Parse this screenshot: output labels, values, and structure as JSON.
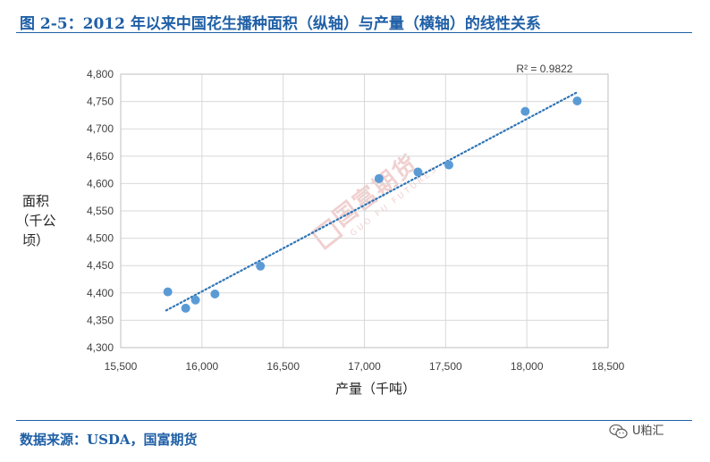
{
  "figure": {
    "title": "图 2-5：2012 年以来中国花生播种面积（纵轴）与产量（横轴）的线性关系",
    "source": "数据来源：USDA，国富期货",
    "badge": "U粕汇",
    "watermark": {
      "main": "国富期货",
      "sub": "GUO FU FUTURES"
    }
  },
  "chart_data": {
    "type": "scatter",
    "title": "",
    "xlabel": "产量（千吨）",
    "ylabel": [
      "面积",
      "（千公顷）"
    ],
    "xlim": [
      15500,
      18500
    ],
    "ylim": [
      4300,
      4800
    ],
    "x_ticks": [
      15500,
      16000,
      16500,
      17000,
      17500,
      18000,
      18500
    ],
    "x_tick_labels": [
      "15,500",
      "16,000",
      "16,500",
      "17,000",
      "17,500",
      "18,000",
      "18,500"
    ],
    "y_ticks": [
      4300,
      4350,
      4400,
      4450,
      4500,
      4550,
      4600,
      4650,
      4700,
      4750,
      4800
    ],
    "y_tick_labels": [
      "4,300",
      "4,350",
      "4,400",
      "4,450",
      "4,500",
      "4,550",
      "4,600",
      "4,650",
      "4,700",
      "4,750",
      "4,800"
    ],
    "grid": true,
    "legend": "none",
    "points": [
      {
        "x": 15790,
        "y": 4402
      },
      {
        "x": 15900,
        "y": 4372
      },
      {
        "x": 15960,
        "y": 4387
      },
      {
        "x": 16080,
        "y": 4398
      },
      {
        "x": 16360,
        "y": 4449
      },
      {
        "x": 17090,
        "y": 4609
      },
      {
        "x": 17330,
        "y": 4621
      },
      {
        "x": 17520,
        "y": 4634
      },
      {
        "x": 17990,
        "y": 4732
      },
      {
        "x": 18310,
        "y": 4751
      }
    ],
    "trendline": {
      "style": "dotted",
      "x": [
        15780,
        18310
      ],
      "y": [
        4368,
        4767
      ],
      "label": "R² = 0.9822"
    },
    "colors": {
      "point": "#5b9bd5",
      "trendline": "#2e75b6",
      "grid": "#d9d9d9"
    }
  }
}
